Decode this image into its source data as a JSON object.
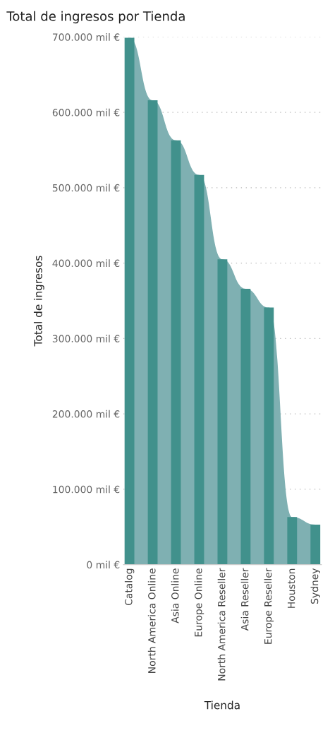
{
  "chart_data": {
    "type": "bar",
    "title": "Total de ingresos por Tienda",
    "xlabel": "Tienda",
    "ylabel": "Total de ingresos",
    "categories": [
      "Catalog",
      "North America Online",
      "Asia Online",
      "Europe Online",
      "North America Reseller",
      "Asia Reseller",
      "Europe Reseller",
      "Houston",
      "Sydney"
    ],
    "series": [
      {
        "type": "area",
        "color": "#7fb0b2",
        "values": [
          699000,
          616000,
          563000,
          517000,
          405000,
          366000,
          341000,
          63000,
          53000
        ]
      },
      {
        "color": "#41918c",
        "values": [
          699000,
          616000,
          563000,
          517000,
          405000,
          366000,
          341000,
          63000,
          53000
        ]
      }
    ],
    "ylim": [
      0,
      700000
    ],
    "yticks": [
      {
        "value": 0,
        "label": "0 mil €"
      },
      {
        "value": 100000,
        "label": "100.000 mil €"
      },
      {
        "value": 200000,
        "label": "200.000 mil €"
      },
      {
        "value": 300000,
        "label": "300.000 mil €"
      },
      {
        "value": 400000,
        "label": "400.000 mil €"
      },
      {
        "value": 500000,
        "label": "500.000 mil €"
      },
      {
        "value": 600000,
        "label": "600.000 mil €"
      },
      {
        "value": 700000,
        "label": "700.000 mil €"
      }
    ],
    "grid": "y"
  }
}
